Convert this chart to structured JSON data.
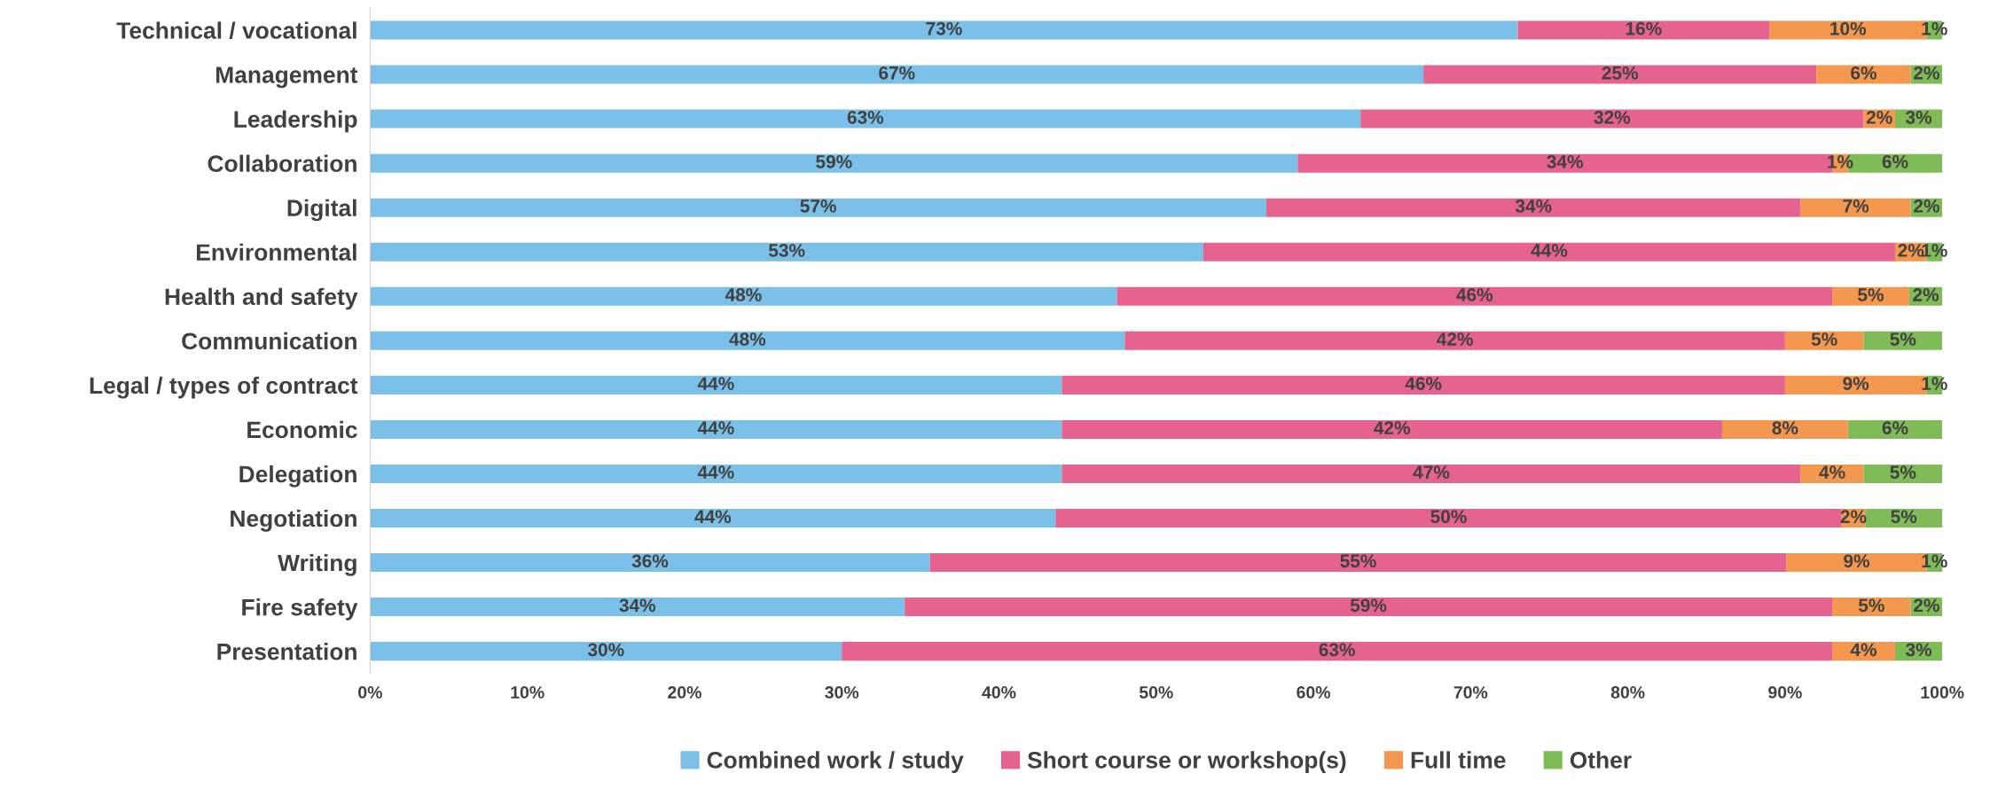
{
  "chart_data": {
    "type": "bar",
    "orientation": "horizontal",
    "stacked": true,
    "categories": [
      "Technical / vocational",
      "Management",
      "Leadership",
      "Collaboration",
      "Digital",
      "Environmental",
      "Health and safety",
      "Communication",
      "Legal / types of contract",
      "Economic",
      "Delegation",
      "Negotiation",
      "Writing",
      "Fire safety",
      "Presentation"
    ],
    "series": [
      {
        "name": "Combined work / study",
        "color": "#7bc0e8",
        "values": [
          73,
          67,
          63,
          59,
          57,
          53,
          47.5,
          48,
          44,
          44,
          44,
          43.6,
          35.6,
          34,
          30
        ],
        "value_labels": [
          "73%",
          "67%",
          "63%",
          "59%",
          "57%",
          "53%",
          "48%",
          "48%",
          "44%",
          "44%",
          "44%",
          "44%",
          "36%",
          "34%",
          "30%"
        ]
      },
      {
        "name": "Short course or workshop(s)",
        "color": "#e5638e",
        "values": [
          16,
          25,
          32,
          34,
          34,
          44,
          45.5,
          42,
          46,
          42,
          47,
          50,
          54.5,
          59,
          63
        ],
        "value_labels": [
          "16%",
          "25%",
          "32%",
          "34%",
          "34%",
          "44%",
          "46%",
          "42%",
          "46%",
          "42%",
          "47%",
          "50%",
          "55%",
          "59%",
          "63%"
        ]
      },
      {
        "name": "Full time",
        "color": "#f4984f",
        "values": [
          10,
          6,
          2,
          1,
          7,
          2,
          4.9,
          5,
          9,
          8,
          4,
          1.5,
          8.9,
          5,
          4
        ],
        "value_labels": [
          "10%",
          "6%",
          "2%",
          "1%",
          "7%",
          "2%",
          "5%",
          "5%",
          "9%",
          "8%",
          "4%",
          "2%",
          "9%",
          "5%",
          "4%"
        ]
      },
      {
        "name": "Other",
        "color": "#7fbb57",
        "values": [
          1,
          2,
          3,
          6,
          2,
          1,
          2.1,
          5,
          1,
          6,
          5,
          4.9,
          1,
          2,
          3
        ],
        "value_labels": [
          "1%",
          "2%",
          "3%",
          "6%",
          "2%",
          "1%",
          "2%",
          "5%",
          "1%",
          "6%",
          "5%",
          "5%",
          "1%",
          "2%",
          "3%"
        ]
      }
    ],
    "xlim": [
      0,
      100
    ],
    "xticks": [
      {
        "value": 0,
        "label": "0%"
      },
      {
        "value": 10,
        "label": "10%"
      },
      {
        "value": 20,
        "label": "20%"
      },
      {
        "value": 30,
        "label": "30%"
      },
      {
        "value": 40,
        "label": "40%"
      },
      {
        "value": 50,
        "label": "50%"
      },
      {
        "value": 60,
        "label": "60%"
      },
      {
        "value": 70,
        "label": "70%"
      },
      {
        "value": 80,
        "label": "80%"
      },
      {
        "value": 90,
        "label": "90%"
      },
      {
        "value": 100,
        "label": "100%"
      }
    ],
    "grid": false,
    "legend": "bottom"
  }
}
